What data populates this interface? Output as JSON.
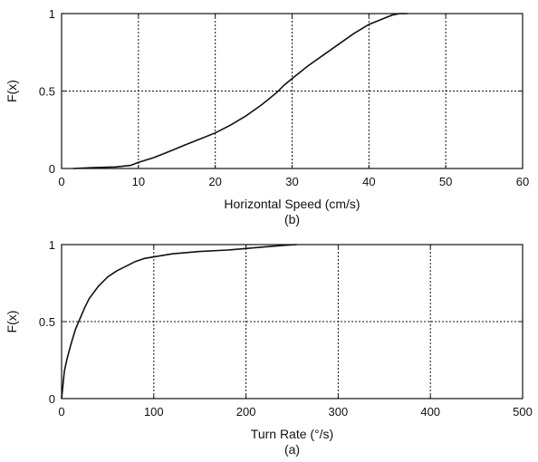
{
  "chart_data": [
    {
      "type": "line",
      "caption": "(b)",
      "xlabel": "Horizontal Speed (cm/s)",
      "ylabel": "F(x)",
      "xlim": [
        0,
        60
      ],
      "ylim": [
        0,
        1
      ],
      "xticks": [
        0,
        10,
        20,
        30,
        40,
        50,
        60
      ],
      "yticks": [
        0,
        0.5,
        1
      ],
      "grid": true,
      "series": [
        {
          "x": [
            1.5,
            4,
            7,
            9,
            10,
            12,
            14,
            16,
            18,
            20,
            22,
            24,
            26,
            28,
            29,
            30,
            32,
            34,
            36,
            38,
            40,
            42,
            43,
            44,
            45
          ],
          "y": [
            0.0,
            0.005,
            0.01,
            0.02,
            0.04,
            0.07,
            0.11,
            0.15,
            0.19,
            0.23,
            0.28,
            0.34,
            0.41,
            0.49,
            0.54,
            0.58,
            0.66,
            0.73,
            0.8,
            0.87,
            0.93,
            0.97,
            0.99,
            1.0,
            1.0
          ]
        }
      ]
    },
    {
      "type": "line",
      "caption": "(a)",
      "xlabel": "Turn Rate (°/s)",
      "ylabel": "F(x)",
      "xlim": [
        0,
        500
      ],
      "ylim": [
        0,
        1
      ],
      "xticks": [
        0,
        100,
        200,
        300,
        400,
        500
      ],
      "yticks": [
        0,
        0.5,
        1
      ],
      "grid": true,
      "series": [
        {
          "x": [
            0,
            3,
            6,
            10,
            15,
            20,
            25,
            30,
            40,
            50,
            60,
            70,
            80,
            90,
            100,
            120,
            150,
            180,
            200,
            220,
            240,
            255
          ],
          "y": [
            0.0,
            0.18,
            0.26,
            0.35,
            0.45,
            0.52,
            0.59,
            0.65,
            0.73,
            0.79,
            0.83,
            0.86,
            0.89,
            0.91,
            0.92,
            0.94,
            0.955,
            0.965,
            0.975,
            0.985,
            0.995,
            1.0
          ]
        }
      ]
    }
  ]
}
